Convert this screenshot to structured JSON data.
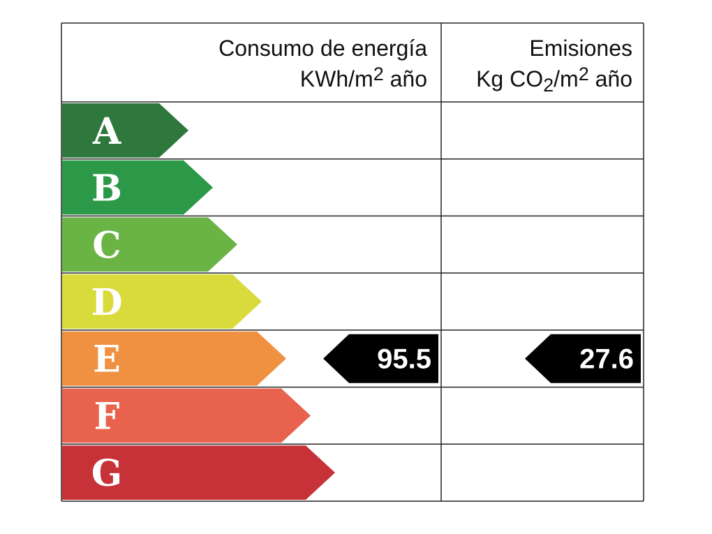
{
  "consumption": {
    "title": "Consumo de energía",
    "unit": [
      {
        "text": "KWh/m"
      },
      {
        "text": "2",
        "pos": "sup"
      },
      {
        "text": " año"
      }
    ],
    "value": 95.5,
    "rating": "E"
  },
  "emissions": {
    "title": "Emisiones",
    "unit": [
      {
        "text": "Kg CO"
      },
      {
        "text": "2",
        "pos": "sub"
      },
      {
        "text": "/m"
      },
      {
        "text": "2",
        "pos": "sup"
      },
      {
        "text": " año"
      }
    ],
    "value": 27.6,
    "rating": "E"
  },
  "grades": [
    {
      "letter": "A",
      "color": "#2e773d"
    },
    {
      "letter": "B",
      "color": "#2b9947"
    },
    {
      "letter": "C",
      "color": "#6ab345"
    },
    {
      "letter": "D",
      "color": "#d8db3b"
    },
    {
      "letter": "E",
      "color": "#ef9140"
    },
    {
      "letter": "F",
      "color": "#e8624d"
    },
    {
      "letter": "G",
      "color": "#c73238"
    }
  ]
}
